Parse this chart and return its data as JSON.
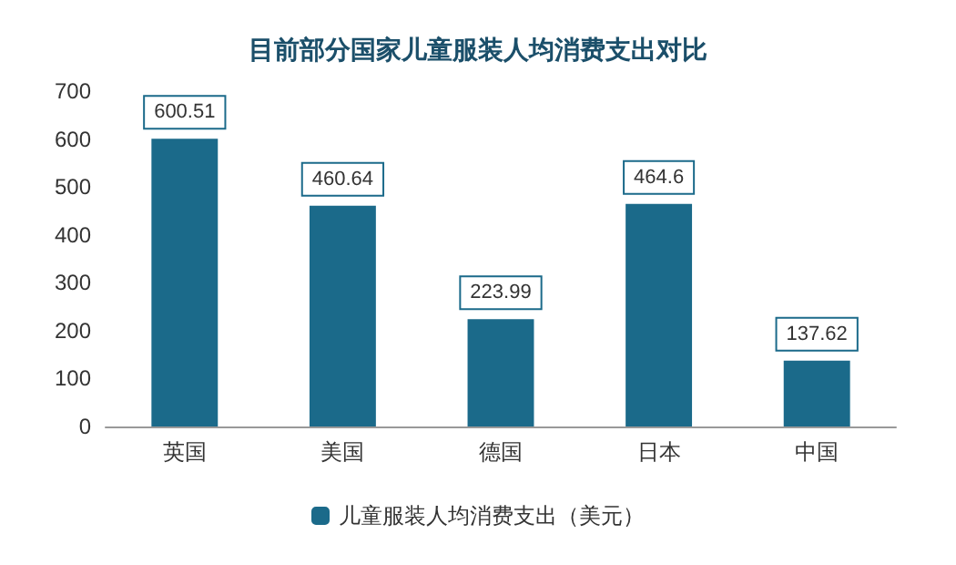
{
  "chart_data": {
    "type": "bar",
    "title": "目前部分国家儿童服装人均消费支出对比",
    "categories": [
      "英国",
      "美国",
      "德国",
      "日本",
      "中国"
    ],
    "series": [
      {
        "name": "儿童服装人均消费支出（美元）",
        "color": "#1b6a8a",
        "values": [
          600.51,
          460.64,
          223.99,
          464.6,
          137.62
        ]
      }
    ],
    "ylim": [
      0,
      700
    ],
    "yticks": [
      0,
      100,
      200,
      300,
      400,
      500,
      600,
      700
    ],
    "grid": false,
    "legend": "bottom",
    "data_labels": true
  }
}
